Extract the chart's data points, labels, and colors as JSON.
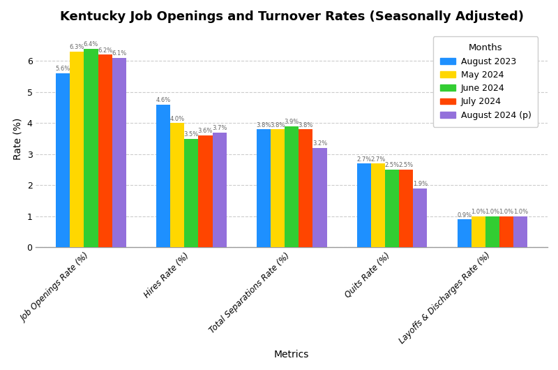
{
  "title": "Kentucky Job Openings and Turnover Rates (Seasonally Adjusted)",
  "xlabel": "Metrics",
  "ylabel": "Rate (%)",
  "categories": [
    "Job Openings Rate (%)",
    "Hires Rate (%)",
    "Total Separations Rate (%)",
    "Quits Rate (%)",
    "Layoffs & Discharges Rate (%)"
  ],
  "months": [
    "August 2023",
    "May 2024",
    "June 2024",
    "July 2024",
    "August 2024 (p)"
  ],
  "colors": [
    "#1e90ff",
    "#ffd700",
    "#32cd32",
    "#ff4500",
    "#9370db"
  ],
  "values": {
    "August 2023": [
      5.6,
      4.6,
      3.8,
      2.7,
      0.9
    ],
    "May 2024": [
      6.3,
      4.0,
      3.8,
      2.7,
      1.0
    ],
    "June 2024": [
      6.4,
      3.5,
      3.9,
      2.5,
      1.0
    ],
    "July 2024": [
      6.2,
      3.6,
      3.8,
      2.5,
      1.0
    ],
    "August 2024 (p)": [
      6.1,
      3.7,
      3.2,
      1.9,
      1.0
    ]
  },
  "ylim": [
    0,
    7.0
  ],
  "background_color": "#ffffff",
  "grid_color": "#cccccc",
  "label_fontsize": 6.0,
  "bar_width": 0.14,
  "xtick_rotation": 45,
  "xtick_fontsize": 8.5,
  "ytick_values": [
    0,
    1,
    2,
    3,
    4,
    5,
    6
  ],
  "title_fontsize": 13,
  "axis_label_fontsize": 10,
  "legend_fontsize": 9,
  "legend_title_fontsize": 9.5
}
